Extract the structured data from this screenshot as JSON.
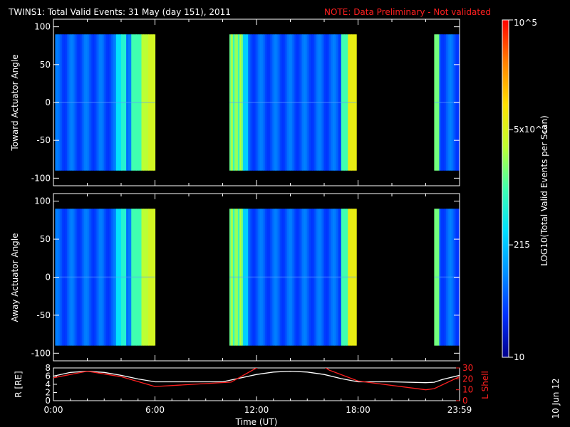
{
  "header": {
    "title": "TWINS1: Total Valid Events: 31 May (day 151), 2011",
    "note": "NOTE: Data Preliminary - Not validated"
  },
  "footer_stamp": "10 Jun 12",
  "chart_data": [
    {
      "type": "heatmap",
      "ylabel": "Toward Actuator Angle",
      "ylim": [
        -110,
        110
      ],
      "yticks": [
        100,
        50,
        0,
        -50,
        -100
      ],
      "xlim_hours": [
        0,
        24
      ],
      "data_angle_range": [
        -90,
        90
      ],
      "data_segments_hours": [
        [
          0.1,
          6.0
        ],
        [
          10.4,
          17.9
        ],
        [
          22.5,
          24.0
        ]
      ]
    },
    {
      "type": "heatmap",
      "ylabel": "Away Actuator Angle",
      "ylim": [
        -110,
        110
      ],
      "yticks": [
        100,
        50,
        0,
        -50,
        -100
      ],
      "xlim_hours": [
        0,
        24
      ],
      "data_angle_range": [
        -90,
        90
      ],
      "data_segments_hours": [
        [
          0.1,
          6.0
        ],
        [
          10.4,
          17.9
        ],
        [
          22.5,
          24.0
        ]
      ]
    },
    {
      "type": "line",
      "xlabel": "Time (UT)",
      "x_tick_labels": [
        "0:00",
        "6:00",
        "12:00",
        "18:00",
        "23:59"
      ],
      "x_tick_hours": [
        0,
        6,
        12,
        18,
        24
      ],
      "left_axis": {
        "label": "R [RE]",
        "ticks": [
          0,
          2,
          4,
          6,
          8
        ],
        "ylim": [
          0,
          8
        ]
      },
      "right_axis": {
        "label": "L Shell",
        "ticks": [
          0,
          10,
          20,
          30
        ],
        "ylim": [
          0,
          30
        ],
        "color": "#ff2020"
      },
      "series": [
        {
          "axis": "left",
          "color": "#ffffff",
          "x": [
            0,
            1,
            2,
            3,
            4,
            5,
            6,
            8,
            10,
            11,
            12,
            13,
            14,
            15,
            16,
            17,
            18,
            20,
            22,
            22.5,
            23,
            24
          ],
          "y": [
            6.0,
            6.9,
            7.2,
            6.9,
            6.2,
            5.3,
            4.6,
            4.6,
            4.6,
            5.5,
            6.4,
            7.0,
            7.2,
            7.0,
            6.4,
            5.4,
            4.6,
            4.6,
            4.4,
            4.5,
            5.2,
            6.2
          ]
        },
        {
          "axis": "right",
          "color": "#ff2020",
          "x": [
            0,
            2,
            4,
            6,
            10.5,
            12,
            12.2,
            16,
            16.3,
            18,
            22,
            22.5,
            24
          ],
          "y": [
            21,
            27,
            22,
            13,
            17,
            30,
            31,
            31,
            28,
            18,
            10,
            11,
            22
          ]
        }
      ]
    }
  ],
  "colorbar": {
    "label": "LOG10(Total Valid Events per Scan)",
    "tick_labels": [
      "10",
      "215",
      "5x10^3",
      "10^5"
    ],
    "tick_values": [
      10,
      215,
      5000,
      100000
    ],
    "range": [
      10,
      100000
    ],
    "colors": [
      "#00008c",
      "#0030ff",
      "#0090ff",
      "#00e0ff",
      "#40ffb0",
      "#c0ff30",
      "#ffe000",
      "#ff8000",
      "#ff0000"
    ]
  }
}
